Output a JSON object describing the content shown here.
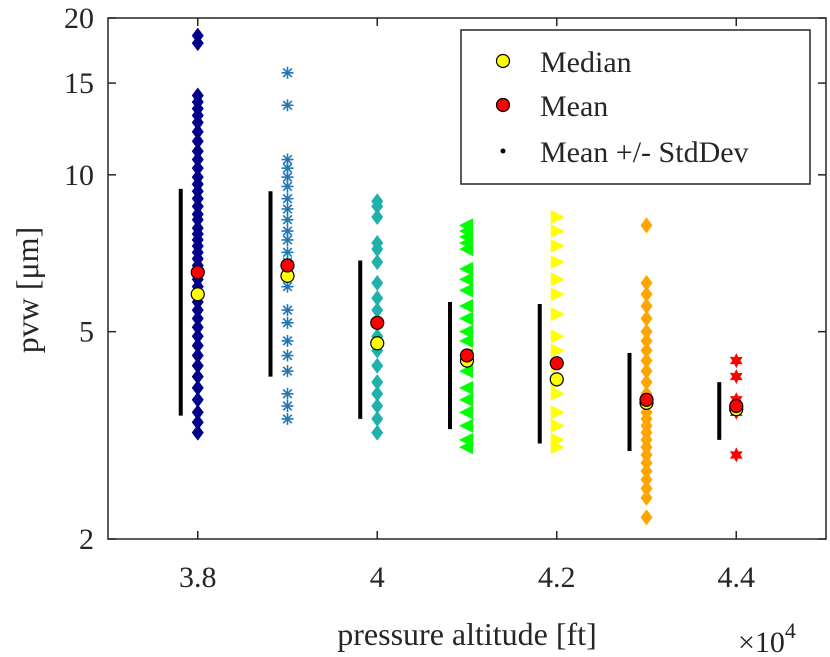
{
  "chart_data": {
    "type": "scatter",
    "xlabel": "pressure altitude [ft]",
    "ylabel": "pvw [μm]",
    "x_multiplier": "×10",
    "x_multiplier_exp": "4",
    "xlim": [
      3.7,
      4.5
    ],
    "ylim": [
      2,
      20
    ],
    "y_scale": "log",
    "xticks": [
      3.8,
      4.0,
      4.2,
      4.4
    ],
    "xtick_labels": [
      "3.8",
      "4",
      "4.2",
      "4.4"
    ],
    "yticks": [
      2,
      5,
      10,
      15,
      20
    ],
    "ytick_labels": [
      "2",
      "5",
      "10",
      "15",
      "20"
    ],
    "legend": {
      "position": "top-right",
      "entries": [
        {
          "label": "Median",
          "marker": "circle",
          "color": "#ffff00"
        },
        {
          "label": "Mean",
          "marker": "circle",
          "color": "#ff0000"
        },
        {
          "label": "Mean +/- StdDev",
          "marker": "dot",
          "color": "#000000"
        }
      ]
    },
    "groups": [
      {
        "x": 3.8,
        "marker": "diamond",
        "color": "#00008b",
        "median": 5.9,
        "mean": 6.5,
        "std_low": 3.45,
        "std_high": 9.4,
        "values": [
          18.5,
          17.9,
          14.2,
          13.8,
          13.4,
          13.0,
          12.6,
          12.1,
          11.6,
          11.1,
          10.7,
          10.3,
          9.9,
          9.6,
          9.3,
          9.0,
          8.7,
          8.4,
          8.2,
          7.9,
          7.7,
          7.5,
          7.3,
          7.1,
          6.9,
          6.7,
          6.5,
          6.3,
          6.1,
          5.9,
          5.7,
          5.5,
          5.3,
          5.1,
          4.9,
          4.7,
          4.5,
          4.3,
          4.1,
          3.9,
          3.7,
          3.5,
          3.35,
          3.2
        ]
      },
      {
        "x": 3.9,
        "marker": "asterisk",
        "color": "#1f77b4",
        "median": 6.4,
        "mean": 6.7,
        "std_low": 4.1,
        "std_high": 9.3,
        "values": [
          15.7,
          13.6,
          10.7,
          10.3,
          9.9,
          9.5,
          9.0,
          8.6,
          8.2,
          7.8,
          7.5,
          7.1,
          6.8,
          6.5,
          6.1,
          5.5,
          5.2,
          4.8,
          4.5,
          4.2,
          3.8,
          3.6,
          3.4
        ]
      },
      {
        "x": 4.0,
        "marker": "diamond",
        "color": "#20b2aa",
        "median": 4.75,
        "mean": 5.2,
        "std_low": 3.4,
        "std_high": 6.85,
        "values": [
          8.9,
          8.7,
          8.3,
          7.4,
          7.2,
          6.8,
          6.2,
          5.8,
          5.5,
          5.2,
          4.9,
          4.6,
          4.3,
          4.0,
          3.8,
          3.6,
          3.4,
          3.2
        ]
      },
      {
        "x": 4.1,
        "marker": "triangle-left",
        "color": "#00ff00",
        "median": 4.4,
        "mean": 4.5,
        "std_low": 3.25,
        "std_high": 5.7,
        "values": [
          8.0,
          7.8,
          7.6,
          7.4,
          7.2,
          6.6,
          6.3,
          6.0,
          5.6,
          5.3,
          5.0,
          4.8,
          4.5,
          4.2,
          3.9,
          3.7,
          3.5,
          3.3,
          3.1,
          3.0
        ]
      },
      {
        "x": 4.2,
        "marker": "triangle-right",
        "color": "#ffff00",
        "median": 4.05,
        "mean": 4.35,
        "std_low": 3.05,
        "std_high": 5.65,
        "values": [
          8.3,
          7.8,
          7.3,
          6.8,
          6.3,
          5.9,
          5.4,
          4.9,
          4.6,
          4.3,
          4.0,
          3.8,
          3.5,
          3.3,
          3.1,
          3.0
        ]
      },
      {
        "x": 4.3,
        "marker": "diamond",
        "color": "#ffa500",
        "median": 3.65,
        "mean": 3.7,
        "std_low": 2.95,
        "std_high": 4.55,
        "values": [
          8.0,
          6.2,
          5.9,
          5.6,
          5.3,
          5.0,
          4.8,
          4.6,
          4.4,
          4.2,
          4.0,
          3.8,
          3.6,
          3.5,
          3.4,
          3.3,
          3.2,
          3.1,
          3.0,
          2.9,
          2.8,
          2.7,
          2.6,
          2.5,
          2.4,
          2.2
        ]
      },
      {
        "x": 4.4,
        "marker": "hexagram",
        "color": "#ff0000",
        "median": 3.55,
        "mean": 3.6,
        "std_low": 3.1,
        "std_high": 4.0,
        "values": [
          4.4,
          4.1,
          3.7,
          3.5,
          2.9
        ]
      }
    ]
  }
}
